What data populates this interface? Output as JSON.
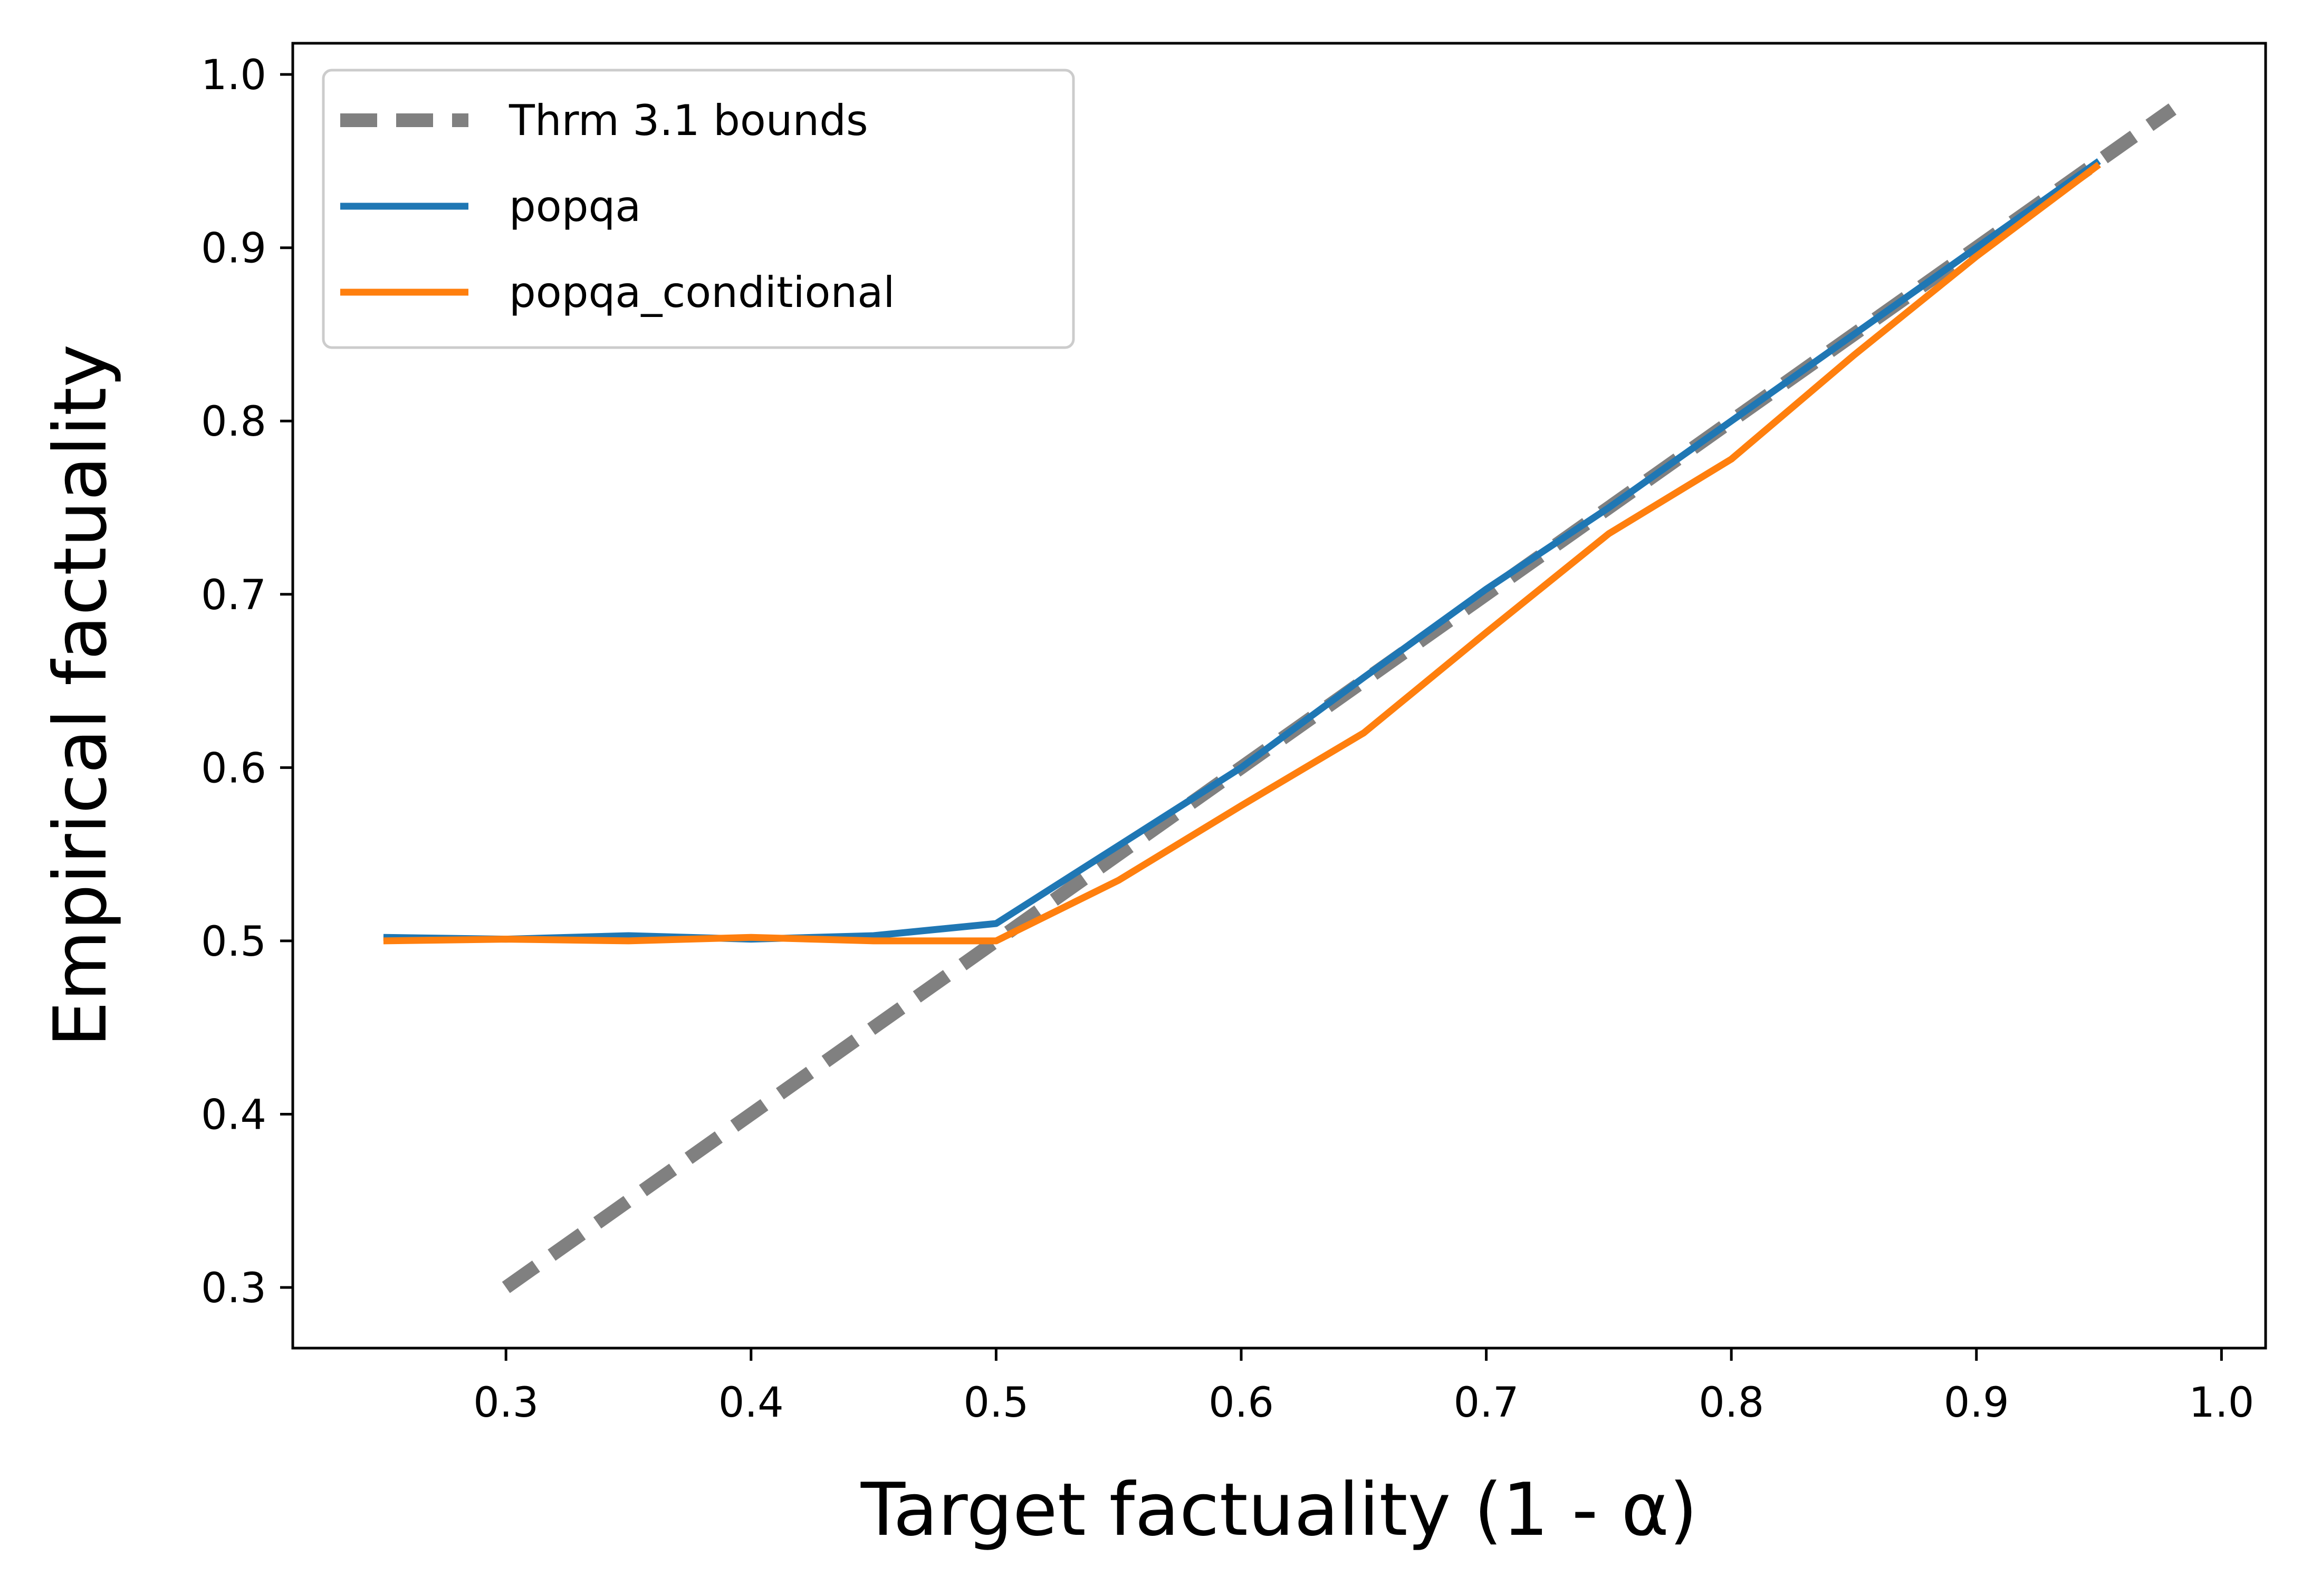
{
  "chart_data": {
    "type": "line",
    "title": "",
    "xlabel": "Target factuality (1 - α)",
    "ylabel": "Empirical factuality",
    "xlim": [
      0.213,
      1.018
    ],
    "ylim": [
      0.265,
      1.018
    ],
    "xticks": [
      0.3,
      0.4,
      0.5,
      0.6,
      0.7,
      0.8,
      0.9,
      1.0
    ],
    "yticks": [
      0.3,
      0.4,
      0.5,
      0.6,
      0.7,
      0.8,
      0.9,
      1.0
    ],
    "xtick_labels": [
      "0.3",
      "0.4",
      "0.5",
      "0.6",
      "0.7",
      "0.8",
      "0.9",
      "1.0"
    ],
    "ytick_labels": [
      "0.3",
      "0.4",
      "0.5",
      "0.6",
      "0.7",
      "0.8",
      "0.9",
      "1.0"
    ],
    "grid": false,
    "legend_position": "upper-left",
    "series": [
      {
        "name": "Thrm 3.1 bounds",
        "color": "#808080",
        "style": "dashed",
        "x": [
          0.3,
          0.98
        ],
        "y": [
          0.3,
          0.98
        ]
      },
      {
        "name": "popqa",
        "color": "#1f77b4",
        "style": "solid",
        "x": [
          0.25,
          0.3,
          0.35,
          0.4,
          0.45,
          0.5,
          0.55,
          0.6,
          0.65,
          0.7,
          0.75,
          0.8,
          0.85,
          0.9,
          0.95
        ],
        "y": [
          0.502,
          0.501,
          0.503,
          0.501,
          0.503,
          0.51,
          0.555,
          0.6,
          0.652,
          0.703,
          0.75,
          0.8,
          0.85,
          0.9,
          0.95
        ]
      },
      {
        "name": "popqa_conditional",
        "color": "#ff7f0e",
        "style": "solid",
        "x": [
          0.25,
          0.3,
          0.35,
          0.4,
          0.45,
          0.5,
          0.55,
          0.6,
          0.65,
          0.7,
          0.75,
          0.8,
          0.85,
          0.9,
          0.95
        ],
        "y": [
          0.5,
          0.501,
          0.5,
          0.502,
          0.5,
          0.5,
          0.535,
          0.578,
          0.62,
          0.678,
          0.735,
          0.778,
          0.838,
          0.895,
          0.948
        ]
      }
    ]
  }
}
